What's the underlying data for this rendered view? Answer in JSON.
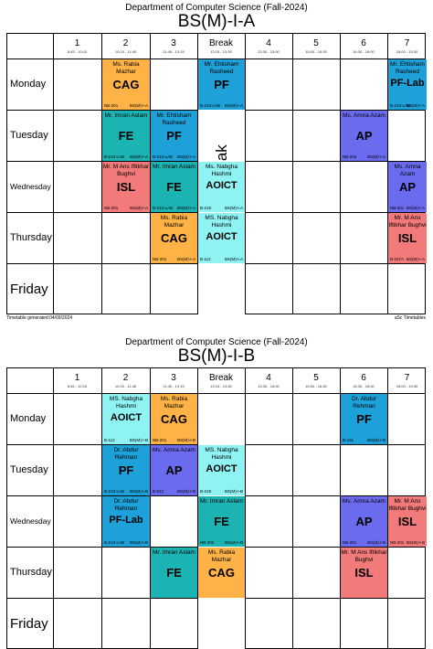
{
  "colors": {
    "CAG": "#ffb347",
    "PF": "#1ea0d8",
    "PF-Lab": "#1ea0d8",
    "FE": "#1cb3b3",
    "AP": "#6b6bf0",
    "ISL": "#f27a7a",
    "AOICT": "#8ff3f3"
  },
  "periods": [
    {
      "num": "1",
      "time": "8:45 - 10:15"
    },
    {
      "num": "2",
      "time": "10:15 - 11:45"
    },
    {
      "num": "3",
      "time": "11:45 - 13:15"
    },
    {
      "num": "Break",
      "time": "13:15 - 13:30"
    },
    {
      "num": "4",
      "time": "13:30 - 15:00"
    },
    {
      "num": "5",
      "time": "15:00 - 16:30"
    },
    {
      "num": "6",
      "time": "16:30 - 18:00"
    },
    {
      "num": "7",
      "time": "18:00 - 19:30"
    }
  ],
  "days": [
    "Monday",
    "Tuesday",
    "Wednesday",
    "Thursday",
    "Friday"
  ],
  "break_label": "Zuhar Break",
  "timetables": [
    {
      "department": "Department of Computer Science (Fall-2024)",
      "class_name": "BS(M)-I-A",
      "footer_left": "Timetable generated:04/09/2024",
      "footer_right": "aSc Timetables",
      "lessons": [
        {
          "day": 0,
          "col": 0,
          "span": 1,
          "teacher": "Ms. Rabia Mazhar",
          "subject": "CAG",
          "room": "NB-201",
          "group": "BS(M)-I-A"
        },
        {
          "day": 0,
          "col": 2,
          "span": 1,
          "teacher": "Mr. Ehtisham Rasheed",
          "subject": "PF",
          "room": "B-213-LAB",
          "group": "BS(M)-I-A"
        },
        {
          "day": 0,
          "col": 5,
          "span": 1,
          "teacher": "Mr. Ehtisham Rasheed",
          "subject": "PF-Lab",
          "room": "B-213-LAB",
          "group": "BS(M)-I-A"
        },
        {
          "day": 1,
          "col": 0,
          "span": 1,
          "teacher": "Mr. Imran Aslam",
          "subject": "FE",
          "room": "B-213-LAB",
          "group": "BS(M)-I-A"
        },
        {
          "day": 1,
          "col": 1,
          "span": 1,
          "teacher": "Mr. Ehtisham Rasheed",
          "subject": "PF",
          "room": "B-213-LAB",
          "group": "BS(M)-I-A"
        },
        {
          "day": 1,
          "col": 4,
          "span": 1,
          "teacher": "Ms. Amna Azam",
          "subject": "AP",
          "room": "NB-206",
          "group": "BS(M)-I-A"
        },
        {
          "day": 2,
          "col": 0,
          "span": 1,
          "teacher": "Mr. M Ans Iftikhar Bughvi",
          "subject": "ISL",
          "room": "NB-201",
          "group": "BS(M)-I-A"
        },
        {
          "day": 2,
          "col": 1,
          "span": 1,
          "teacher": "Mr. Imran Aslam",
          "subject": "FE",
          "room": "B-213-LAB",
          "group": "BS(M)-I-A"
        },
        {
          "day": 2,
          "col": 2,
          "span": 1,
          "teacher": "Ms. Nabgha Hashmi",
          "subject": "AOICT",
          "room": "B-218",
          "group": "BS(M)-I-A"
        },
        {
          "day": 2,
          "col": 5,
          "span": 1,
          "teacher": "Ms. Amna Azam",
          "subject": "AP",
          "room": "NB-201",
          "group": "BS(M)-I-A"
        },
        {
          "day": 3,
          "col": 1,
          "span": 1,
          "teacher": "Ms. Rabia Mazhar",
          "subject": "CAG",
          "room": "NB-201",
          "group": "BS(M)-I-A"
        },
        {
          "day": 3,
          "col": 2,
          "span": 1,
          "teacher": "MS. Nabgha Hashmi",
          "subject": "AOICT",
          "room": "B-112",
          "group": "BS(M)-I-A"
        },
        {
          "day": 3,
          "col": 5,
          "span": 1,
          "teacher": "Mr. M Ans Iftikhar Bughvi",
          "subject": "ISL",
          "room": "B-107A",
          "group": "BS(M)-I-A"
        }
      ]
    },
    {
      "department": "Department of Computer Science (Fall-2024)",
      "class_name": "BS(M)-I-B",
      "lessons": [
        {
          "day": 0,
          "col": 0,
          "span": 1,
          "teacher": "MS. Nabgha Hashmi",
          "subject": "AOICT",
          "room": "B-112",
          "group": "BS(M)-I-B"
        },
        {
          "day": 0,
          "col": 1,
          "span": 1,
          "teacher": "Ms. Rabia Mazhar",
          "subject": "CAG",
          "room": "NB-201",
          "group": "BS(M)-I-B"
        },
        {
          "day": 0,
          "col": 4,
          "span": 1,
          "teacher": "Dr. Abdur Rehman",
          "subject": "PF",
          "room": "B-101",
          "group": "BS(M)-I-B"
        },
        {
          "day": 1,
          "col": 0,
          "span": 1,
          "teacher": "Dr. Abdur Rehman",
          "subject": "PF",
          "room": "B-213-LAB",
          "group": "BS(M)-I-B"
        },
        {
          "day": 1,
          "col": 1,
          "span": 1,
          "teacher": "Ms. Amna Azam",
          "subject": "AP",
          "room": "B-012",
          "group": "BS(M)-I-B"
        },
        {
          "day": 1,
          "col": 2,
          "span": 1,
          "teacher": "MS. Nabgha Hashmi",
          "subject": "AOICT",
          "room": "B-218",
          "group": "BS(M)-I-B"
        },
        {
          "day": 2,
          "col": 0,
          "span": 1,
          "teacher": "Dr. Abdur Rehman",
          "subject": "PF-Lab",
          "room": "B-213-LAB",
          "group": "BS(M)-I-B"
        },
        {
          "day": 2,
          "col": 2,
          "span": 1,
          "teacher": "Mr. Imran Aslam",
          "subject": "FE",
          "room": "NB-202",
          "group": "BS(M)-I-B"
        },
        {
          "day": 2,
          "col": 4,
          "span": 1,
          "teacher": "Ms. Amna Azam",
          "subject": "AP",
          "room": "NB-201",
          "group": "BS(M)-I-B"
        },
        {
          "day": 2,
          "col": 5,
          "span": 1,
          "teacher": "Mr. M Ans Iftikhar Bughvi",
          "subject": "ISL",
          "room": "NB-201",
          "group": "BS(M)-I-B"
        },
        {
          "day": 3,
          "col": 1,
          "span": 1,
          "teacher": "Mr. Imran Aslam",
          "subject": "FE",
          "room": "",
          "group": ""
        },
        {
          "day": 3,
          "col": 2,
          "span": 1,
          "teacher": "Ms. Rabia Mazhar",
          "subject": "CAG",
          "room": "",
          "group": ""
        },
        {
          "day": 3,
          "col": 4,
          "span": 1,
          "teacher": "Mr. M Ans Iftikhar Bughvi",
          "subject": "ISL",
          "room": "",
          "group": ""
        }
      ]
    }
  ]
}
